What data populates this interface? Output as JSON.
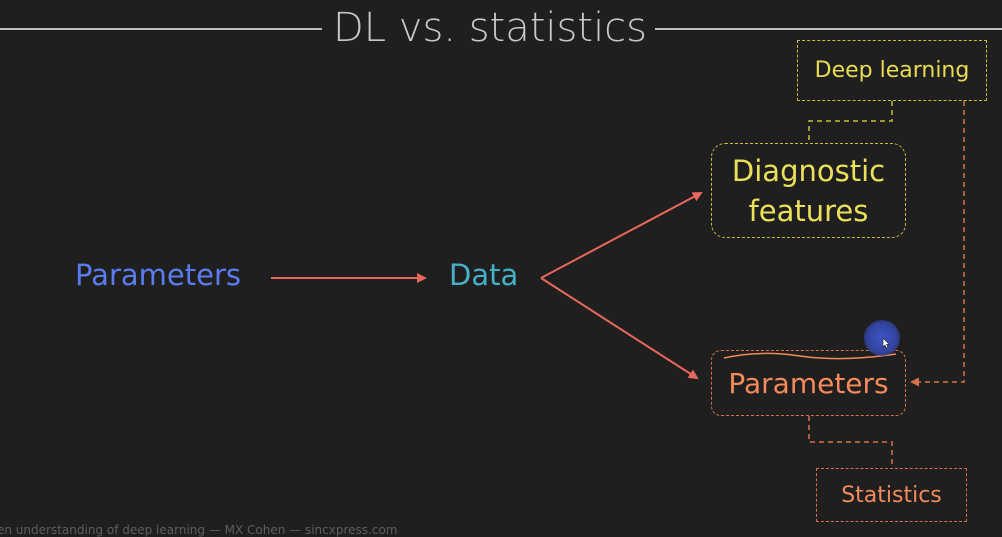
{
  "title": "DL vs. statistics",
  "nodes": {
    "params_left": "Parameters",
    "data": "Data",
    "diagnostic_line1": "Diagnostic",
    "diagnostic_line2": "features",
    "params_right": "Parameters",
    "deep_learning": "Deep learning",
    "statistics": "Statistics"
  },
  "footer": "en understanding of deep learning — MX Cohen — sincxpress.com",
  "colors": {
    "background": "#1f1f1f",
    "title": "#c8c8c8",
    "params_left": "#5b7cf0",
    "data": "#46b0c9",
    "deep_learning": "#e8dc52",
    "statistics": "#f58a5a",
    "arrow": "#e8675c"
  },
  "icons": {
    "cursor": "mouse-pointer-icon"
  }
}
